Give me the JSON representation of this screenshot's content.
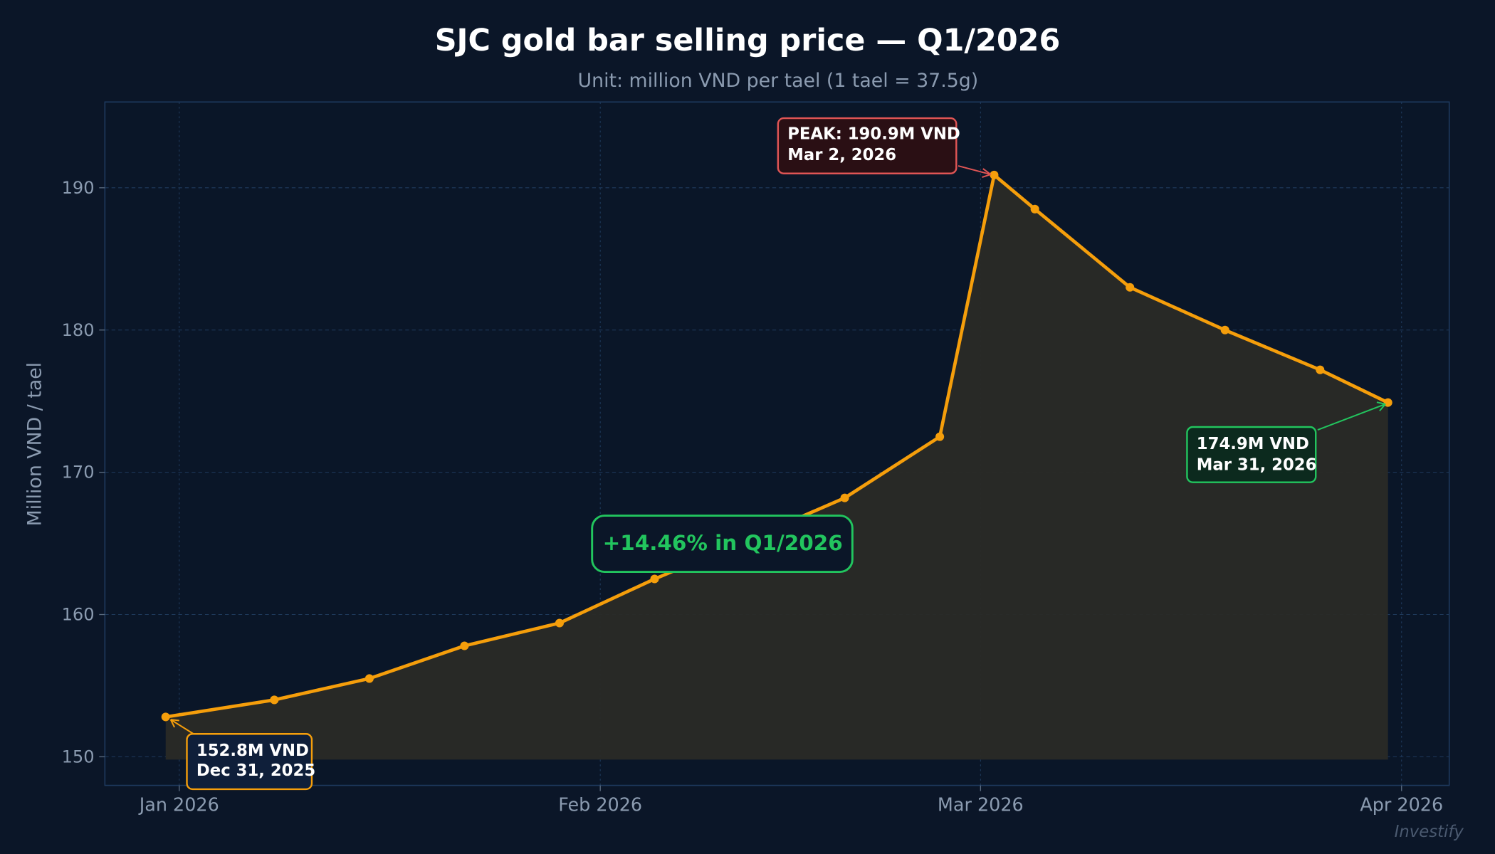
{
  "chart_data": {
    "type": "area",
    "title": "SJC gold bar selling price — Q1/2026",
    "subtitle": "Unit: million VND per tael (1 tael = 37.5g)",
    "xlabel": "",
    "ylabel": "Million VND / tael",
    "ylim": [
      148,
      196
    ],
    "yticks": [
      150,
      160,
      170,
      180,
      190
    ],
    "xticks": [
      {
        "date": "2026-01-01",
        "label": "Jan 2026"
      },
      {
        "date": "2026-02-01",
        "label": "Feb 2026"
      },
      {
        "date": "2026-03-01",
        "label": "Mar 2026"
      },
      {
        "date": "2026-04-01",
        "label": "Apr 2026"
      }
    ],
    "grid": true,
    "series": [
      {
        "color": "#f59e0b",
        "points": [
          {
            "date": "2025-12-31",
            "value": 152.8
          },
          {
            "date": "2026-01-08",
            "value": 154.0
          },
          {
            "date": "2026-01-15",
            "value": 155.5
          },
          {
            "date": "2026-01-22",
            "value": 157.8
          },
          {
            "date": "2026-01-29",
            "value": 159.4
          },
          {
            "date": "2026-02-05",
            "value": 162.5
          },
          {
            "date": "2026-02-12",
            "value": 165.3
          },
          {
            "date": "2026-02-19",
            "value": 168.2
          },
          {
            "date": "2026-02-26",
            "value": 172.5
          },
          {
            "date": "2026-03-02",
            "value": 190.9
          },
          {
            "date": "2026-03-05",
            "value": 188.5
          },
          {
            "date": "2026-03-12",
            "value": 183.0
          },
          {
            "date": "2026-03-19",
            "value": 180.0
          },
          {
            "date": "2026-03-26",
            "value": 177.2
          },
          {
            "date": "2026-03-31",
            "value": 174.9
          }
        ]
      }
    ],
    "annotations": {
      "start": {
        "line1": "152.8M VND",
        "line2": "Dec 31, 2025",
        "color": "#f59e0b"
      },
      "peak": {
        "line1": "PEAK: 190.9M VND",
        "line2": "Mar 2, 2026",
        "color": "#e05555"
      },
      "end": {
        "line1": "174.9M VND",
        "line2": "Mar 31, 2026",
        "color": "#22c55e"
      },
      "change": {
        "text": "+14.46% in Q1/2026",
        "color": "#22c55e"
      }
    },
    "watermark": "Investify"
  }
}
